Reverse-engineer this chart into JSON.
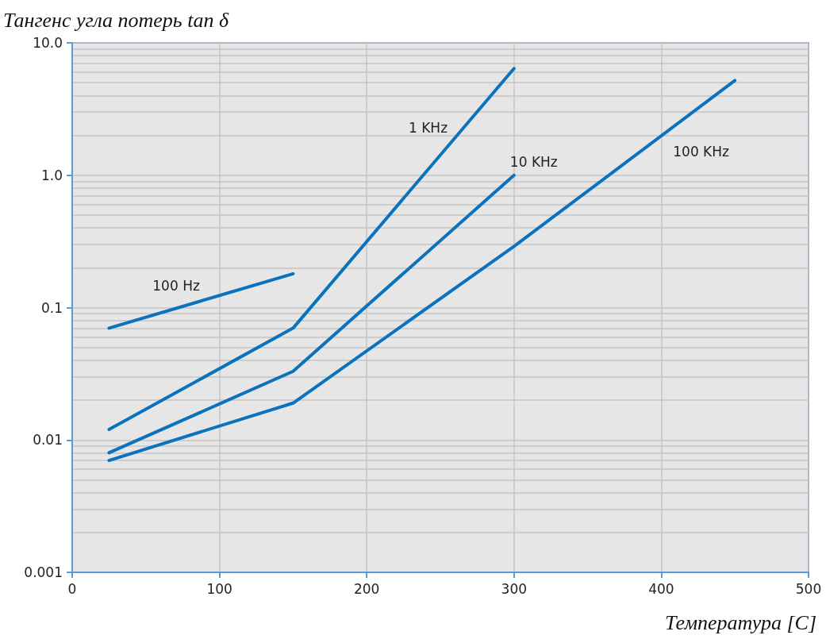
{
  "chart_data": {
    "type": "line",
    "ylabel": "Тангенс угла потерь tan δ",
    "xlabel": "Температура [C]",
    "xlim": [
      0,
      500
    ],
    "xticks": [
      0,
      100,
      200,
      300,
      400,
      500
    ],
    "ylim": [
      0.001,
      10
    ],
    "yticks": [
      {
        "value": 10,
        "label": "10.0"
      },
      {
        "value": 1,
        "label": "1.0"
      },
      0.1,
      0.01,
      0.001
    ],
    "log": "y",
    "grid": true,
    "legend": false,
    "marker": "none",
    "line_style": "solid",
    "series": [
      {
        "name": "100 Hz",
        "color": "#0b72bd",
        "x": [
          25,
          150
        ],
        "values": [
          0.07,
          0.18
        ]
      },
      {
        "name": "1 KHz",
        "color": "#0b72bd",
        "x": [
          25,
          150,
          300
        ],
        "values": [
          0.012,
          0.07,
          6.4
        ]
      },
      {
        "name": "10 KHz",
        "color": "#0b72bd",
        "x": [
          25,
          150,
          300
        ],
        "values": [
          0.008,
          0.033,
          1.0
        ]
      },
      {
        "name": "100 KHz",
        "color": "#0b72bd",
        "x": [
          25,
          150,
          300,
          450
        ],
        "values": [
          0.007,
          0.019,
          0.29,
          5.2
        ]
      }
    ]
  }
}
